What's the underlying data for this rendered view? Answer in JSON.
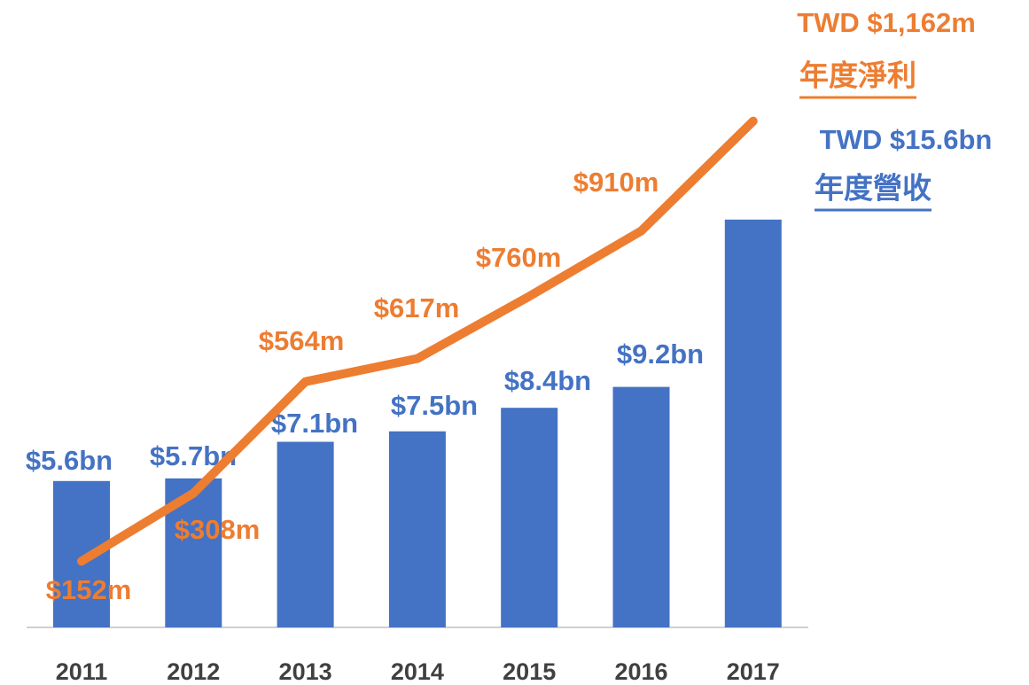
{
  "chart_data": {
    "type": "bar+line",
    "categories": [
      "2011",
      "2012",
      "2013",
      "2014",
      "2015",
      "2016",
      "2017"
    ],
    "series": [
      {
        "name": "年度營收",
        "type": "bar",
        "color": "#4472c4",
        "axis": "y",
        "values": [
          5.6,
          5.7,
          7.1,
          7.5,
          8.4,
          9.2,
          15.6
        ],
        "value_labels": [
          "$5.6bn",
          "$5.7bn",
          "$7.1bn",
          "$7.5bn",
          "$8.4bn",
          "$9.2bn",
          "TWD $15.6bn"
        ]
      },
      {
        "name": "年度淨利",
        "type": "line",
        "color": "#ed7d31",
        "axis": "y2",
        "values": [
          152,
          308,
          564,
          617,
          760,
          910,
          1162
        ],
        "value_labels": [
          "$152m",
          "$308m",
          "$564m",
          "$617m",
          "$760m",
          "$910m",
          "TWD $1,162m"
        ]
      }
    ],
    "ylim": [
      0,
      24
    ],
    "y2lim": [
      0,
      1440
    ]
  }
}
